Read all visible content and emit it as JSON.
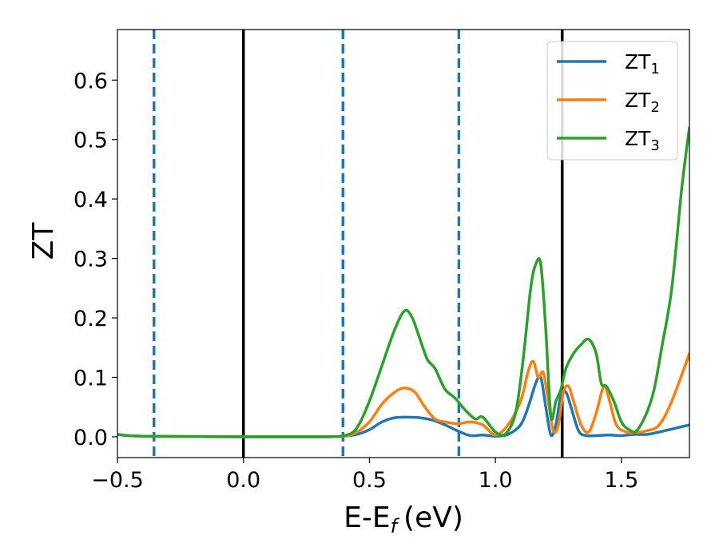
{
  "chart_data": {
    "type": "line",
    "xlabel": "E-E",
    "xlabel_sub": "f",
    "xlabel_unit": "(eV)",
    "ylabel": "ZT",
    "xlim": [
      -0.5,
      1.77
    ],
    "ylim": [
      -0.035,
      0.685
    ],
    "xticks": [
      -0.5,
      0.0,
      0.5,
      1.0,
      1.5
    ],
    "xtick_labels": [
      "−0.5",
      "0.0",
      "0.5",
      "1.0",
      "1.5"
    ],
    "yticks": [
      0.0,
      0.1,
      0.2,
      0.3,
      0.4,
      0.5,
      0.6
    ],
    "ytick_labels": [
      "0.0",
      "0.1",
      "0.2",
      "0.3",
      "0.4",
      "0.5",
      "0.6"
    ],
    "grid": false,
    "legend_position": "top-right",
    "vlines": [
      {
        "x": -0.355,
        "style": "dashed",
        "color": "#1f77b4"
      },
      {
        "x": 0.0,
        "style": "solid",
        "color": "#000000"
      },
      {
        "x": 0.395,
        "style": "dashed",
        "color": "#1f77b4"
      },
      {
        "x": 0.855,
        "style": "dashed",
        "color": "#1f77b4"
      },
      {
        "x": 1.265,
        "style": "solid",
        "color": "#000000"
      }
    ],
    "series": [
      {
        "name": "ZT",
        "name_sub": "1",
        "color": "#1f77b4",
        "x": [
          -0.5,
          -0.4,
          0.0,
          0.3,
          0.4,
          0.45,
          0.5,
          0.55,
          0.6,
          0.65,
          0.7,
          0.75,
          0.8,
          0.85,
          0.9,
          0.95,
          1.0,
          1.05,
          1.1,
          1.13,
          1.16,
          1.18,
          1.2,
          1.22,
          1.24,
          1.26,
          1.28,
          1.3,
          1.33,
          1.36,
          1.4,
          1.45,
          1.5,
          1.55,
          1.6,
          1.65,
          1.7,
          1.77
        ],
        "y": [
          0.004,
          0.001,
          0.0,
          0.0,
          0.001,
          0.004,
          0.012,
          0.025,
          0.032,
          0.033,
          0.032,
          0.028,
          0.02,
          0.01,
          0.002,
          0.003,
          0.001,
          0.004,
          0.02,
          0.05,
          0.09,
          0.1,
          0.05,
          0.003,
          0.02,
          0.07,
          0.075,
          0.05,
          0.01,
          0.002,
          0.002,
          0.003,
          0.002,
          0.004,
          0.004,
          0.008,
          0.013,
          0.02
        ]
      },
      {
        "name": "ZT",
        "name_sub": "2",
        "color": "#ff7f0e",
        "x": [
          -0.5,
          -0.4,
          0.0,
          0.3,
          0.4,
          0.45,
          0.5,
          0.55,
          0.6,
          0.64,
          0.68,
          0.72,
          0.76,
          0.8,
          0.85,
          0.9,
          0.95,
          1.0,
          1.05,
          1.1,
          1.13,
          1.15,
          1.17,
          1.19,
          1.21,
          1.23,
          1.25,
          1.27,
          1.29,
          1.31,
          1.34,
          1.37,
          1.4,
          1.43,
          1.45,
          1.48,
          1.52,
          1.55,
          1.6,
          1.65,
          1.7,
          1.77
        ],
        "y": [
          0.004,
          0.001,
          0.0,
          0.0,
          0.001,
          0.008,
          0.025,
          0.055,
          0.075,
          0.082,
          0.075,
          0.05,
          0.03,
          0.025,
          0.022,
          0.025,
          0.02,
          0.003,
          0.02,
          0.06,
          0.11,
          0.127,
          0.1,
          0.108,
          0.06,
          0.01,
          0.02,
          0.075,
          0.085,
          0.06,
          0.02,
          0.008,
          0.04,
          0.085,
          0.065,
          0.02,
          0.008,
          0.007,
          0.01,
          0.02,
          0.06,
          0.14
        ]
      },
      {
        "name": "ZT",
        "name_sub": "3",
        "color": "#2ca02c",
        "x": [
          -0.5,
          -0.4,
          0.0,
          0.3,
          0.4,
          0.45,
          0.5,
          0.55,
          0.6,
          0.64,
          0.67,
          0.7,
          0.73,
          0.76,
          0.8,
          0.84,
          0.88,
          0.92,
          0.95,
          1.0,
          1.04,
          1.08,
          1.11,
          1.14,
          1.16,
          1.18,
          1.2,
          1.22,
          1.24,
          1.26,
          1.28,
          1.31,
          1.34,
          1.37,
          1.4,
          1.42,
          1.44,
          1.47,
          1.5,
          1.53,
          1.56,
          1.6,
          1.63,
          1.66,
          1.7,
          1.74,
          1.77
        ],
        "y": [
          0.004,
          0.001,
          0.0,
          0.0,
          0.002,
          0.015,
          0.06,
          0.12,
          0.18,
          0.212,
          0.2,
          0.165,
          0.13,
          0.115,
          0.08,
          0.065,
          0.045,
          0.03,
          0.033,
          0.008,
          0.005,
          0.04,
          0.13,
          0.25,
          0.29,
          0.29,
          0.18,
          0.035,
          0.06,
          0.08,
          0.115,
          0.14,
          0.155,
          0.164,
          0.14,
          0.09,
          0.085,
          0.06,
          0.025,
          0.012,
          0.01,
          0.04,
          0.08,
          0.15,
          0.25,
          0.42,
          0.52
        ]
      }
    ]
  }
}
